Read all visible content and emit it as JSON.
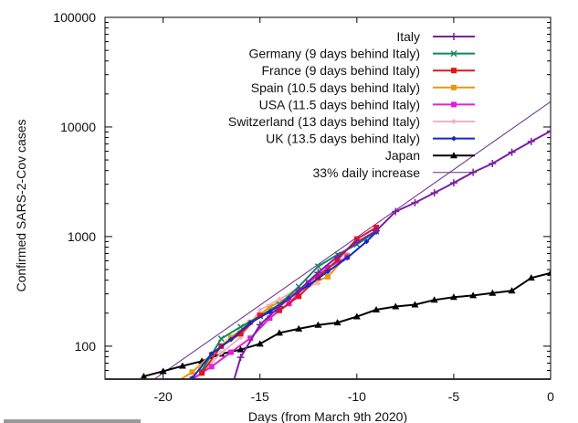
{
  "chart_data": {
    "type": "line",
    "title": "",
    "xlabel": "Days (from March 9th 2020)",
    "ylabel": "Confirmed SARS-2-Cov cases",
    "xlim": [
      -23,
      0
    ],
    "ylim": [
      50,
      100000
    ],
    "yscale": "log",
    "xticks": [
      -20,
      -15,
      -10,
      -5,
      0
    ],
    "xtick_labels": [
      "-20",
      "-15",
      "-10",
      "-5",
      "0"
    ],
    "yticks": [
      100,
      1000,
      10000,
      100000
    ],
    "ytick_labels": [
      "100",
      "1000",
      "10000",
      "100000"
    ],
    "grid": false,
    "legend_position": "top-right",
    "series": [
      {
        "name": "Italy",
        "color": "#7b1fa2",
        "marker": "plus",
        "x": [
          -17,
          -16,
          -15,
          -14,
          -13,
          -12,
          -11,
          -10,
          -9,
          -8,
          -7,
          -6,
          -5,
          -4,
          -3,
          -2,
          -1,
          0
        ],
        "y": [
          20,
          79,
          157,
          229,
          323,
          470,
          655,
          889,
          1128,
          1694,
          2036,
          2502,
          3089,
          3858,
          4636,
          5883,
          7375,
          9172
        ]
      },
      {
        "name": "Germany (9 days behind Italy)",
        "color": "#0e8a5f",
        "marker": "x",
        "x": [
          -18,
          -17,
          -16,
          -15,
          -14,
          -13,
          -12,
          -11,
          -10,
          -9
        ],
        "y": [
          60,
          117,
          150,
          188,
          240,
          349,
          534,
          684,
          847,
          1112
        ]
      },
      {
        "name": "France (9 days behind Italy)",
        "color": "#e3141b",
        "marker": "square",
        "x": [
          -18,
          -17,
          -16,
          -15,
          -14,
          -13,
          -12,
          -11,
          -10,
          -9
        ],
        "y": [
          57,
          100,
          130,
          191,
          212,
          285,
          423,
          613,
          949,
          1209
        ]
      },
      {
        "name": "Spain (10.5 days behind Italy)",
        "color": "#e59a10",
        "marker": "square",
        "x": [
          -19.5,
          -18.5,
          -17.5,
          -16.5,
          -15.5,
          -14.5,
          -13.5,
          -12.5,
          -11.5,
          -10.5
        ],
        "y": [
          45,
          58,
          84,
          120,
          165,
          228,
          282,
          365,
          430,
          674
        ]
      },
      {
        "name": "USA (11.5 days behind Italy)",
        "color": "#e020d8",
        "marker": "square",
        "x": [
          -18.5,
          -17.5,
          -16.5,
          -15.5,
          -14.5,
          -13.5,
          -12.5,
          -11.5,
          -10.5
        ],
        "y": [
          50,
          65,
          88,
          118,
          180,
          245,
          380,
          520,
          650
        ]
      },
      {
        "name": "Switzerland (13 days behind Italy)",
        "color": "#f2b3c0",
        "marker": "diamond",
        "x": [
          -19,
          -18,
          -17,
          -16,
          -15,
          -14,
          -13,
          -12
        ],
        "y": [
          42,
          56,
          87,
          120,
          214,
          268,
          337,
          374
        ]
      },
      {
        "name": "UK (13.5 days behind Italy)",
        "color": "#1428c8",
        "marker": "diamond",
        "x": [
          -18.5,
          -17.5,
          -16.5,
          -15.5,
          -14.5,
          -13.5,
          -12.5,
          -11.5,
          -10.5,
          -9.5,
          -9
        ],
        "y": [
          51,
          85,
          115,
          163,
          206,
          273,
          360,
          480,
          640,
          900,
          1100
        ]
      },
      {
        "name": "Japan",
        "color": "#000000",
        "marker": "triangle",
        "x": [
          -21,
          -20,
          -19,
          -18,
          -17,
          -16,
          -15,
          -14,
          -13,
          -12,
          -11,
          -10,
          -9,
          -8,
          -7,
          -6,
          -5,
          -4,
          -3,
          -2,
          -1,
          0
        ],
        "y": [
          53,
          59,
          66,
          73,
          85,
          93,
          105,
          132,
          144,
          156,
          164,
          186,
          215,
          230,
          239,
          264,
          280,
          290,
          305,
          320,
          420,
          465
        ]
      },
      {
        "name": "33% daily increase",
        "color": "#6a2a8a",
        "marker": "none",
        "x": [
          -23,
          0
        ],
        "y": [
          24.2,
          17000
        ]
      }
    ]
  }
}
